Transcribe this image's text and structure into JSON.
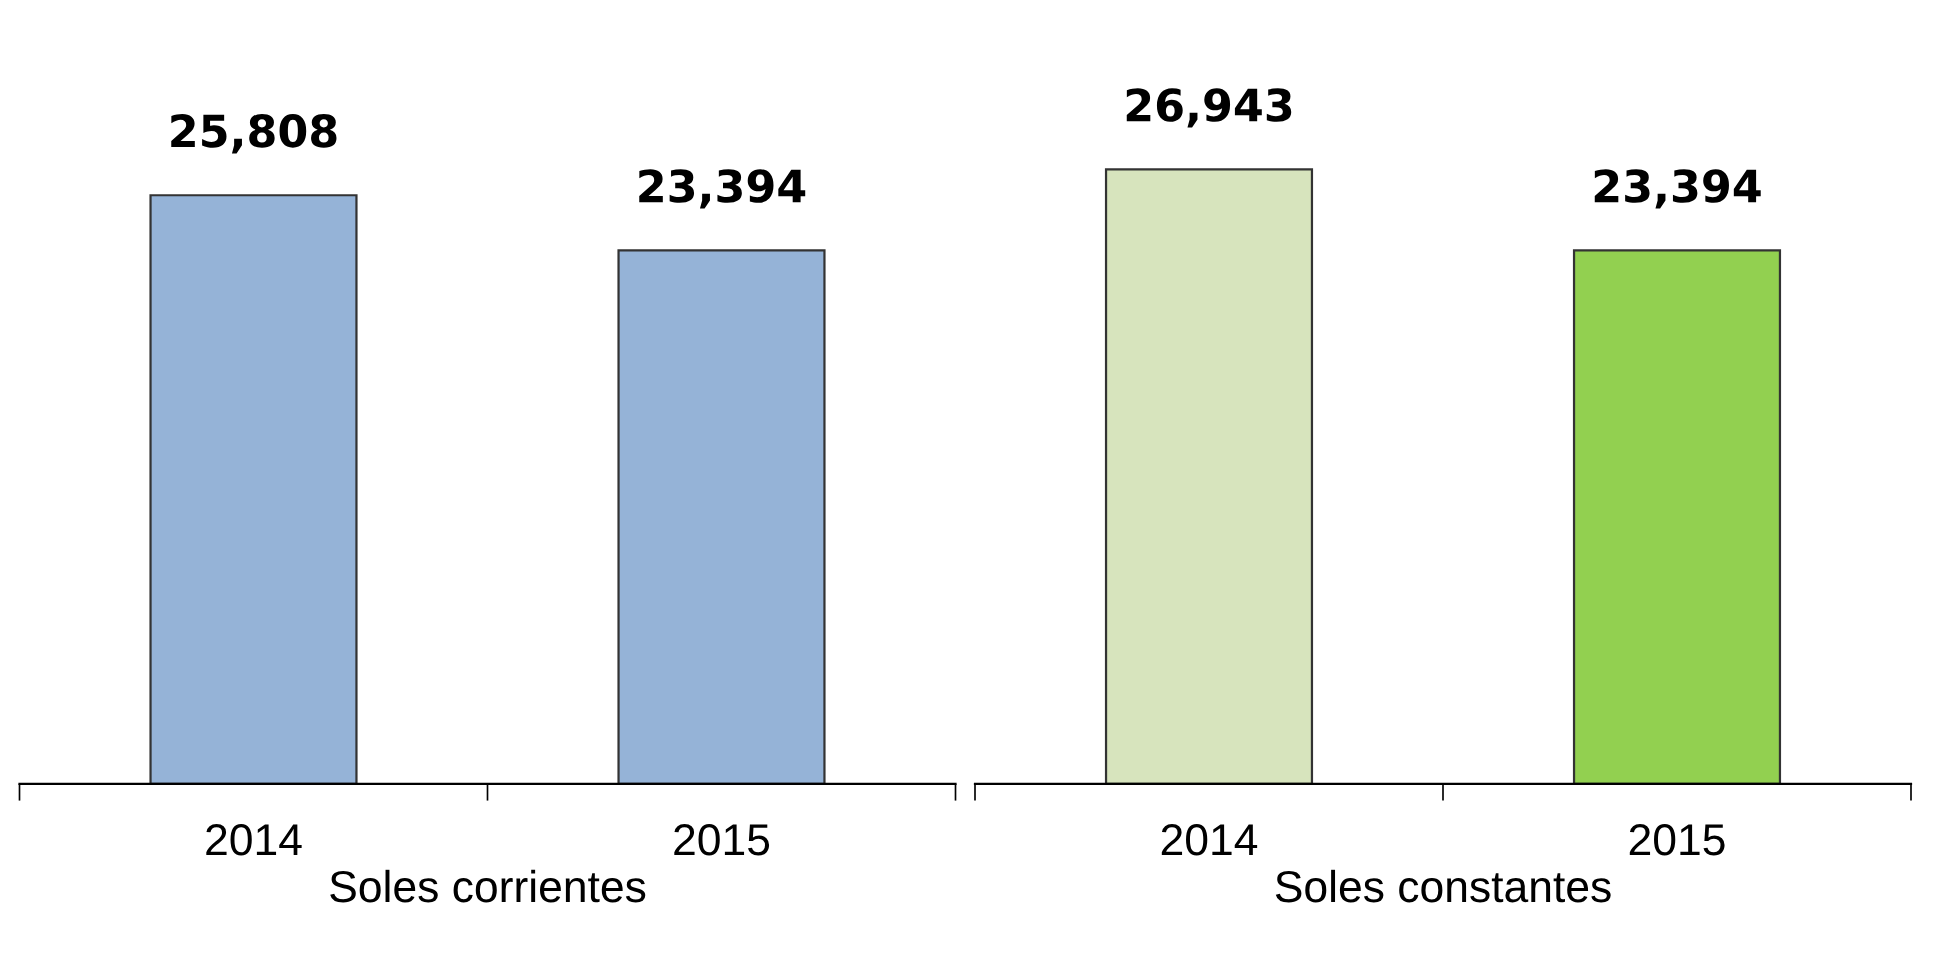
{
  "chart_data": [
    {
      "type": "bar",
      "xlabel": "Soles corrientes",
      "categories": [
        "2014",
        "2015"
      ],
      "values": [
        25808,
        23394
      ],
      "colors": [
        "#95b3d7",
        "#95b3d7"
      ],
      "value_labels": [
        "25,808",
        "23,394"
      ],
      "grid": false,
      "legend": false
    },
    {
      "type": "bar",
      "xlabel": "Soles constantes",
      "categories": [
        "2014",
        "2015"
      ],
      "values": [
        26943,
        23394
      ],
      "colors": [
        "#d7e4bd",
        "#92d050"
      ],
      "value_labels": [
        "26,943",
        "23,394"
      ],
      "grid": false,
      "legend": false
    }
  ]
}
